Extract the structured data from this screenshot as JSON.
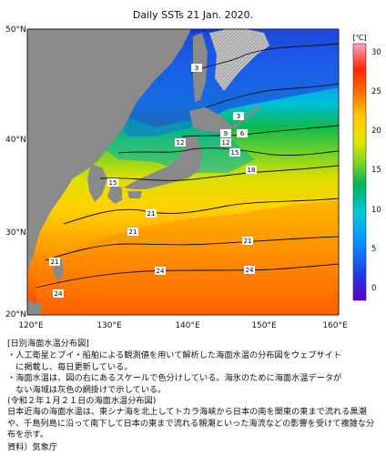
{
  "map": {
    "title": "Daily SSTs 21 Jan. 2020.",
    "colorbar_unit": "[℃]",
    "colorbar_ticks": [
      "0",
      "5",
      "10",
      "15",
      "20",
      "25",
      "30"
    ],
    "lat_labels": [
      "50°N",
      "40°N",
      "30°N",
      "20°N"
    ],
    "lon_labels": [
      "120°E",
      "130°E",
      "140°E",
      "150°E",
      "160°E"
    ],
    "contour_labels": [
      "3",
      "3",
      "6",
      "9",
      "12",
      "12",
      "15",
      "15",
      "18",
      "21",
      "21",
      "21",
      "21",
      "24",
      "24",
      "24"
    ],
    "colors": {
      "land": "#8a8a8a",
      "missing": "#bfbfbf",
      "sst_scale": [
        "#5b00c8",
        "#1e3cdc",
        "#0a8cff",
        "#00c8dc",
        "#00b45a",
        "#78d228",
        "#e6e600",
        "#ffc800",
        "#ff7800",
        "#ff2800",
        "#ffa0c8"
      ]
    }
  },
  "caption": {
    "heading": "[日別海面水温分布図]",
    "bullet1": "・人工衛星とブイ・船舶による観測値を用いて解析した海面水温の分布図をウェブサイト\n　に掲載し、毎日更新している。",
    "bullet2": "・海面水温は、図の右にあるスケールで色分けしている。海氷のために海面水温データが\n　ない海域は灰色の網掛けで示している。",
    "date_note": "(令和２年１月２１日の海面水温分布図)",
    "body": "日本近海の海面水温は、東シナ海を北上してトカラ海峡から日本の南を関東の東まで流れる黒潮や、千島列島に沿って南下して日本の東まで流れる親潮といった海流などの影響を受けて複雑な分布を示す。",
    "source": "資料）気象庁"
  }
}
